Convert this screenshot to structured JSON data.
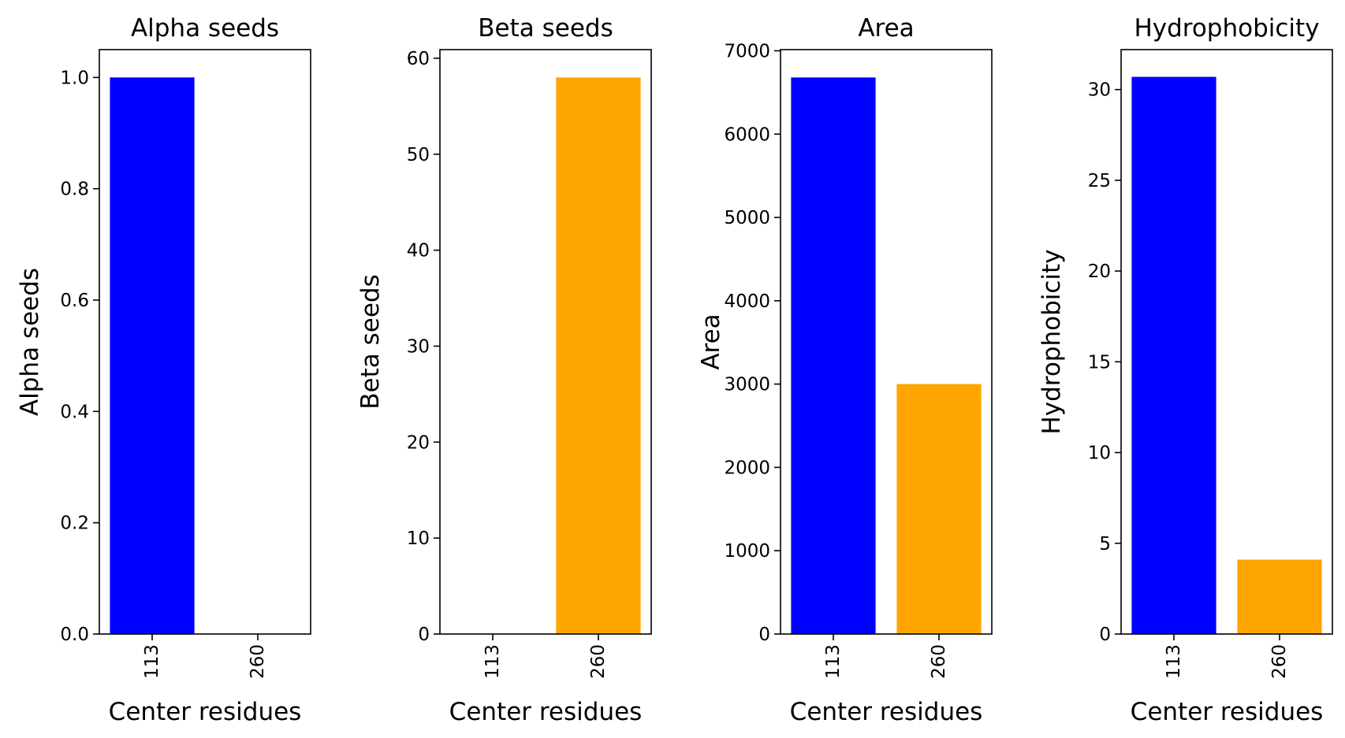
{
  "chart_data": [
    {
      "type": "bar",
      "title": "Alpha seeds",
      "xlabel": "Center residues",
      "ylabel": "Alpha seeds",
      "categories": [
        "113",
        "260"
      ],
      "values": [
        1.0,
        0.0
      ],
      "colors": [
        "#0000ff",
        "#ffa500"
      ],
      "ylim": [
        0,
        1.05
      ],
      "yticks": [
        0.0,
        0.2,
        0.4,
        0.6,
        0.8,
        1.0
      ],
      "ytick_labels": [
        "0.0",
        "0.2",
        "0.4",
        "0.6",
        "0.8",
        "1.0"
      ],
      "grid": false
    },
    {
      "type": "bar",
      "title": "Beta seeds",
      "xlabel": "Center residues",
      "ylabel": "Beta seeds",
      "categories": [
        "113",
        "260"
      ],
      "values": [
        0,
        58
      ],
      "colors": [
        "#0000ff",
        "#ffa500"
      ],
      "ylim": [
        0,
        60.9
      ],
      "yticks": [
        0,
        10,
        20,
        30,
        40,
        50,
        60
      ],
      "ytick_labels": [
        "0",
        "10",
        "20",
        "30",
        "40",
        "50",
        "60"
      ],
      "grid": false
    },
    {
      "type": "bar",
      "title": "Area",
      "xlabel": "Center residues",
      "ylabel": "Area",
      "categories": [
        "113",
        "260"
      ],
      "values": [
        6680,
        3000
      ],
      "colors": [
        "#0000ff",
        "#ffa500"
      ],
      "ylim": [
        0,
        7014
      ],
      "yticks": [
        0,
        1000,
        2000,
        3000,
        4000,
        5000,
        6000,
        7000
      ],
      "ytick_labels": [
        "0",
        "1000",
        "2000",
        "3000",
        "4000",
        "5000",
        "6000",
        "7000"
      ],
      "grid": false
    },
    {
      "type": "bar",
      "title": "Hydrophobicity",
      "xlabel": "Center residues",
      "ylabel": "Hydrophobicity",
      "categories": [
        "113",
        "260"
      ],
      "values": [
        30.7,
        4.1
      ],
      "colors": [
        "#0000ff",
        "#ffa500"
      ],
      "ylim": [
        0,
        32.2
      ],
      "yticks": [
        0,
        5,
        10,
        15,
        20,
        25,
        30
      ],
      "ytick_labels": [
        "0",
        "5",
        "10",
        "15",
        "20",
        "25",
        "30"
      ],
      "grid": false
    }
  ]
}
